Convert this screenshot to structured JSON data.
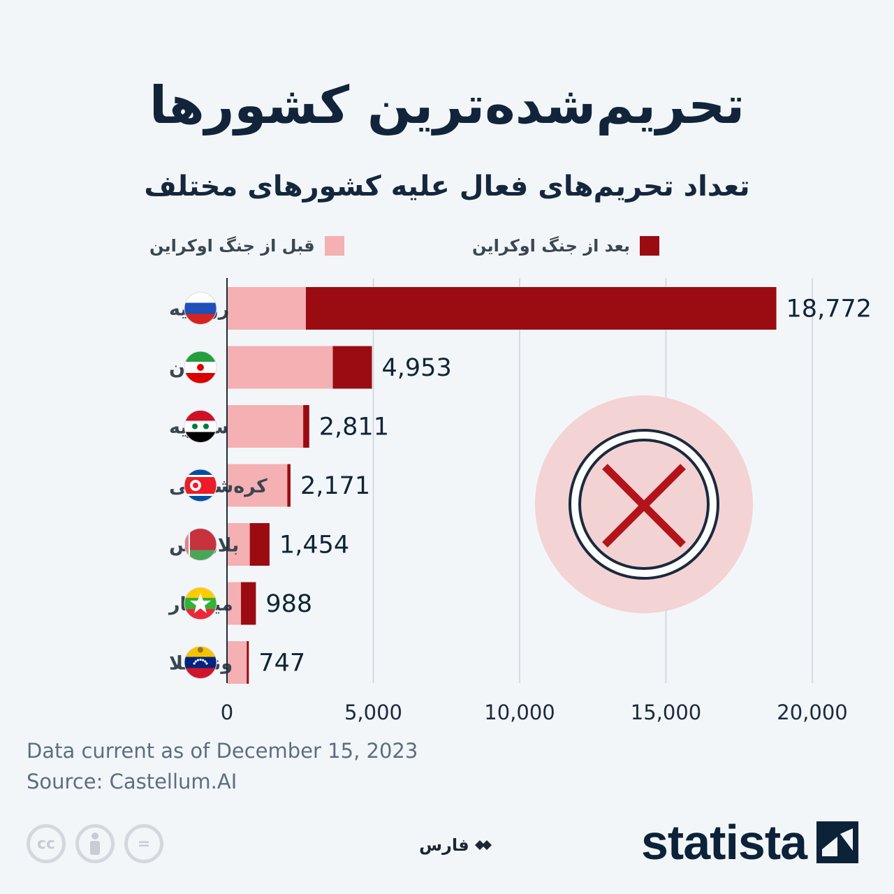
{
  "title": "تحریم‌شده‌ترین کشورها",
  "subtitle": "تعداد تحریم‌های فعال علیه کشورهای مختلف",
  "legend": {
    "before": {
      "label": "قبل از جنگ اوکراین",
      "color": "#f4b0b2"
    },
    "after": {
      "label": "بعد از جنگ اوکراین",
      "color": "#9a0c12"
    }
  },
  "chart_data": {
    "type": "bar",
    "orientation": "horizontal",
    "stacked": true,
    "categories": [
      "روسیه",
      "ایران",
      "سوریه",
      "کره‌شمالی",
      "بلاروس",
      "میانمار",
      "ونزوئلا"
    ],
    "flags": [
      "russia-flag-icon",
      "iran-flag-icon",
      "syria-flag-icon",
      "north-korea-flag-icon",
      "belarus-flag-icon",
      "myanmar-flag-icon",
      "venezuela-flag-icon"
    ],
    "series": [
      {
        "name": "قبل از جنگ اوکراین",
        "color": "#f4b0b2",
        "values": [
          2695,
          3616,
          2604,
          2061,
          779,
          478,
          674
        ]
      },
      {
        "name": "بعد از جنگ اوکراین",
        "color": "#9a0c12",
        "values": [
          16077,
          1337,
          207,
          110,
          675,
          510,
          73
        ]
      }
    ],
    "totals": [
      18772,
      4953,
      2811,
      2171,
      1454,
      988,
      747
    ],
    "total_labels": [
      "18,772",
      "4,953",
      "2,811",
      "2,171",
      "1,454",
      "988",
      "747"
    ],
    "xlim": [
      0,
      20000
    ],
    "xticks": [
      0,
      5000,
      10000,
      15000,
      20000
    ],
    "xtick_labels": [
      "0",
      "5,000",
      "10,000",
      "15,000",
      "20,000"
    ],
    "grid": true
  },
  "footer": {
    "date_note": "Data current as of December 15, 2023",
    "source": "Source: Castellum.AI"
  },
  "license_icons": [
    "cc",
    "person",
    "="
  ],
  "fars_label": "فارس",
  "brand": "statista"
}
